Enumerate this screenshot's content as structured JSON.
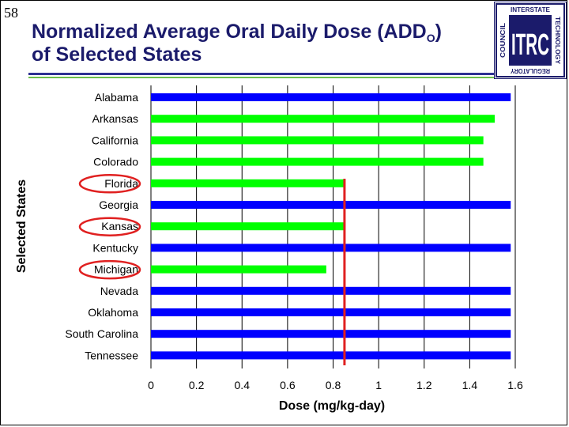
{
  "slide": {
    "number": "58",
    "title_line1_prefix": "Normalized Average Oral Daily Dose (ADD",
    "title_subscript": "O",
    "title_line1_suffix": ")",
    "title_line2": "of Selected States"
  },
  "logo": {
    "letters": "ITRC",
    "top": "INTERSTATE",
    "right": "TECHNOLOGY",
    "bottom": "REGULATORY",
    "left": "COUNCIL",
    "colors": {
      "navy": "#1b1b6b"
    }
  },
  "chart_data": {
    "type": "bar",
    "orientation": "horizontal",
    "ylabel": "Selected States",
    "xlabel": "Dose (mg/kg-day)",
    "xlim": [
      0,
      1.6
    ],
    "xticks": [
      0,
      0.2,
      0.4,
      0.6,
      0.8,
      1,
      1.2,
      1.4,
      1.6
    ],
    "xtick_labels": [
      "0",
      "0.2",
      "0.4",
      "0.6",
      "0.8",
      "1",
      "1.2",
      "1.4",
      "1.6"
    ],
    "categories": [
      "Alabama",
      "Arkansas",
      "California",
      "Colorado",
      "Florida",
      "Georgia",
      "Kansas",
      "Kentucky",
      "Michigan",
      "Nevada",
      "Oklahoma",
      "South Carolina",
      "Tennessee"
    ],
    "values": [
      1.58,
      1.51,
      1.46,
      1.46,
      0.85,
      1.58,
      0.85,
      1.58,
      0.77,
      1.58,
      1.58,
      1.58,
      1.58
    ],
    "bar_colors": [
      "#0000ff",
      "#00ff00",
      "#00ff00",
      "#00ff00",
      "#00ff00",
      "#0000ff",
      "#00ff00",
      "#0000ff",
      "#00ff00",
      "#0000ff",
      "#0000ff",
      "#0000ff",
      "#0000ff"
    ],
    "highlighted": [
      "Florida",
      "Kansas",
      "Michigan"
    ],
    "reference_line": {
      "value": 0.85,
      "color": "#e02020"
    },
    "grid_x": true,
    "colors": {
      "blue": "#0000ff",
      "green": "#00ff00",
      "highlight": "#e02020",
      "grid": "#000000"
    }
  }
}
